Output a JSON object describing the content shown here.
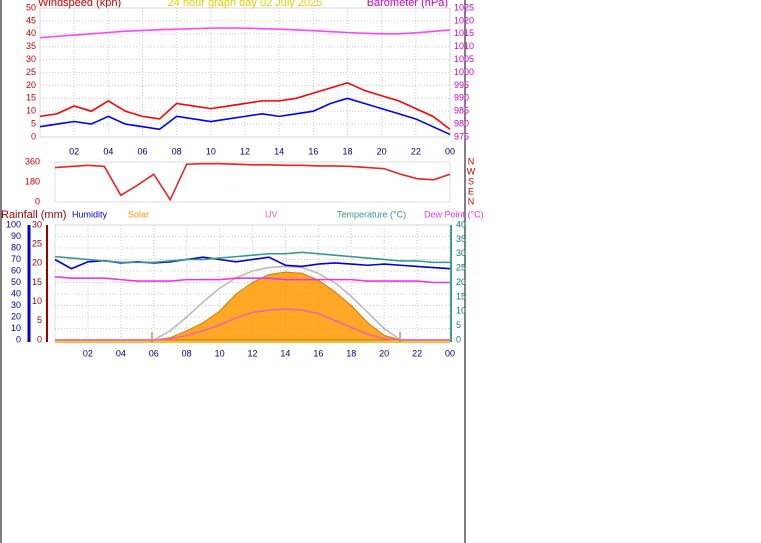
{
  "chart_data": [
    {
      "type": "line",
      "title": "24 hour graph day  02 July 2025",
      "ylabel": "Windspeed (kph)",
      "y2label": "Barometer (hPa)",
      "x": [
        0,
        1,
        2,
        3,
        4,
        5,
        6,
        7,
        8,
        9,
        10,
        11,
        12,
        13,
        14,
        15,
        16,
        17,
        18,
        19,
        20,
        21,
        22,
        23,
        24
      ],
      "xlim": [
        0,
        24
      ],
      "xticks": [
        {
          "value": 2,
          "label": "02"
        },
        {
          "value": 4,
          "label": "04"
        },
        {
          "value": 6,
          "label": "06"
        },
        {
          "value": 8,
          "label": "08"
        },
        10,
        12,
        14,
        16,
        18,
        20,
        22,
        {
          "value": 24,
          "label": "00"
        }
      ],
      "ylim": [
        0,
        50
      ],
      "yticks": [
        0,
        5,
        10,
        15,
        20,
        25,
        30,
        35,
        40,
        45,
        50
      ],
      "y2lim": [
        975,
        1025
      ],
      "y2ticks": [
        975,
        980,
        985,
        990,
        995,
        1000,
        1005,
        1010,
        1015,
        1020,
        1025
      ],
      "grid": true,
      "ycolor": "#cc0000",
      "y2color": "#cc00cc",
      "series": [
        {
          "color": "#ff0000",
          "values": [
            8,
            9,
            12,
            10,
            14,
            10,
            8,
            7,
            13,
            12,
            11,
            12,
            13,
            14,
            14,
            15,
            17,
            19,
            21,
            18,
            16,
            14,
            11,
            8,
            3
          ]
        },
        {
          "color": "#0000ff",
          "values": [
            4,
            5,
            6,
            5,
            8,
            5,
            4,
            3,
            8,
            7,
            6,
            7,
            8,
            9,
            8,
            9,
            10,
            13,
            15,
            13,
            11,
            9,
            7,
            4,
            1
          ]
        },
        {
          "color": "#ff44ff",
          "axis": "y2",
          "values": [
            1013.5,
            1014,
            1014.5,
            1015,
            1015.5,
            1016,
            1016.3,
            1016.6,
            1016.8,
            1017,
            1017.2,
            1017.2,
            1017.2,
            1017,
            1016.8,
            1016.5,
            1016.2,
            1015.8,
            1015.5,
            1015.2,
            1015,
            1015,
            1015.4,
            1015.9,
            1016.5
          ]
        }
      ]
    },
    {
      "type": "line",
      "x": [
        0,
        1,
        2,
        3,
        4,
        5,
        6,
        7,
        8,
        9,
        10,
        11,
        12,
        13,
        14,
        15,
        16,
        17,
        18,
        19,
        20,
        21,
        22,
        23,
        24
      ],
      "xlim": [
        0,
        24
      ],
      "ylim": [
        0,
        360
      ],
      "yticks": [
        0,
        180,
        360
      ],
      "y2lim": [
        0,
        360
      ],
      "y2ticks": [
        {
          "value": 0,
          "label": "N"
        },
        {
          "value": 90,
          "label": "E"
        },
        {
          "value": 180,
          "label": "S"
        },
        {
          "value": 270,
          "label": "W"
        },
        {
          "value": 360,
          "label": "N"
        }
      ],
      "grid": false,
      "ycolor": "#cc0000",
      "y2color": "#cc0000",
      "series": [
        {
          "color": "#ee2222",
          "values": [
            310,
            320,
            330,
            320,
            60,
            150,
            250,
            20,
            340,
            345,
            345,
            340,
            335,
            335,
            330,
            330,
            325,
            325,
            320,
            310,
            300,
            250,
            210,
            200,
            250
          ]
        }
      ]
    },
    {
      "type": "line",
      "y3label": "Rainfall (mm)",
      "x": [
        0,
        1,
        2,
        3,
        4,
        5,
        6,
        7,
        8,
        9,
        10,
        11,
        12,
        13,
        14,
        15,
        16,
        17,
        18,
        19,
        20,
        21,
        22,
        23,
        24
      ],
      "xlim": [
        0,
        24
      ],
      "xticks": [
        {
          "value": 2,
          "label": "02"
        },
        {
          "value": 4,
          "label": "04"
        },
        {
          "value": 6,
          "label": "06"
        },
        {
          "value": 8,
          "label": "08"
        },
        10,
        12,
        14,
        16,
        18,
        20,
        22,
        {
          "value": 24,
          "label": "00"
        }
      ],
      "ylim": [
        0,
        100
      ],
      "yticks": [
        0,
        10,
        20,
        30,
        40,
        50,
        60,
        70,
        80,
        90,
        100
      ],
      "y2lim": [
        0,
        40
      ],
      "y2ticks": [
        0,
        5,
        10,
        15,
        20,
        25,
        30,
        35,
        40
      ],
      "y3lim": [
        0,
        30
      ],
      "y3ticks": [
        0,
        5,
        10,
        15,
        20,
        25,
        30
      ],
      "grid": true,
      "ycolor": "#000099",
      "y2color": "#008080",
      "y3color": "#990000",
      "series": [
        {
          "color": "#bbbbbb",
          "values": [
            0,
            0,
            0,
            0,
            0,
            0,
            0,
            8,
            20,
            33,
            45,
            54,
            60,
            63,
            64,
            63,
            58,
            50,
            38,
            24,
            10,
            0,
            0,
            0,
            0
          ]
        },
        {
          "name": "Solar",
          "color": "#ff9900",
          "area": true,
          "values": [
            0,
            0,
            0,
            0,
            0,
            0,
            0,
            2,
            8,
            15,
            25,
            40,
            50,
            57,
            59,
            58,
            52,
            42,
            30,
            15,
            4,
            0,
            0,
            0,
            0
          ]
        },
        {
          "name": "UV",
          "color": "#ee66aa",
          "values": [
            0,
            0,
            0,
            0,
            0,
            0,
            0,
            1,
            4,
            8,
            13,
            19,
            24,
            26,
            27,
            26,
            23,
            17,
            11,
            5,
            1,
            0,
            0,
            0,
            0
          ]
        },
        {
          "name": "Humidity",
          "color": "#0000dd",
          "values": [
            70,
            62,
            68,
            69,
            67,
            68,
            67,
            68,
            70,
            72,
            70,
            68,
            70,
            72,
            65,
            64,
            66,
            67,
            66,
            65,
            66,
            65,
            64,
            63,
            62
          ]
        },
        {
          "name": "Temperature (°C)",
          "color": "#339988",
          "axis": "y2",
          "values": [
            29,
            28.5,
            28,
            27.5,
            27,
            27,
            27,
            27.5,
            28,
            28,
            28.5,
            29,
            29.5,
            30,
            30,
            30.5,
            30,
            29.5,
            29,
            28.5,
            28,
            27.5,
            27.5,
            27,
            27
          ]
        },
        {
          "name": "Dew Point (°C)",
          "color": "#ee33ee",
          "axis": "y2",
          "values": [
            22,
            21.5,
            21.5,
            21.5,
            21,
            20.5,
            20.5,
            20.5,
            21,
            21,
            21,
            21.5,
            21.5,
            21.5,
            21,
            21,
            21,
            21,
            21,
            20.5,
            20.5,
            20.5,
            20.5,
            20,
            20
          ]
        }
      ]
    }
  ]
}
